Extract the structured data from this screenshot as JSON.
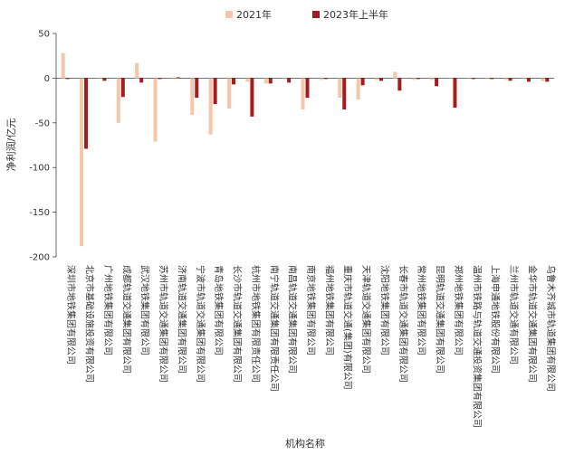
{
  "chart_data": {
    "type": "bar",
    "title": "",
    "xlabel": "机构名称",
    "ylabel": "净利润/亿元",
    "ylim": [
      -200,
      50
    ],
    "yticks": [
      50,
      0,
      -50,
      -100,
      -150,
      -200
    ],
    "grid": false,
    "legend_position": "top",
    "categories": [
      "深圳市地铁集团有限公司",
      "北京市基础设施投资有限公司",
      "广州地铁集团有限公司",
      "成都轨道交通集团有限公司",
      "武汉地铁集团有限公司",
      "苏州市轨道交通集团有限公司",
      "济南轨道交通集团有限公司",
      "宁波市轨道交通集团有限公司",
      "青岛地铁集团有限公司",
      "长沙市轨道交通集团有限公司",
      "杭州市地铁集团有限责任公司",
      "南宁轨道交通集团有限责任公司",
      "南昌轨道交通集团有限公司",
      "南京地铁集团有限公司",
      "福州地铁集团有限公司",
      "重庆市轨道交通(集团)有限公司",
      "天津轨道交通集团有限公司",
      "沈阳地铁集团有限公司",
      "长春市轨道交通集团有限公司",
      "常州地铁集团有限公司",
      "昆明轨道交通集团有限公司",
      "郑州地铁集团有限公司",
      "温州市铁路与轨道交通投资集团有限公司",
      "上海申通地铁股份有限公司",
      "兰州市轨道交通有限公司",
      "金华市轨道交通集团有限公司",
      "乌鲁木齐城市轨道集团有限公司"
    ],
    "series": [
      {
        "name": "2021年",
        "color": "#f5c6a8",
        "values": [
          28,
          -188,
          0,
          -50,
          17,
          -71,
          -1,
          -41,
          -63,
          -34,
          -4,
          -6,
          -1,
          -35,
          -2,
          -22,
          -24,
          -2,
          7,
          -2,
          -2,
          0,
          0,
          -1,
          -2,
          -1,
          -3
        ]
      },
      {
        "name": "2023年上半年",
        "color": "#a31c20",
        "values": [
          -1,
          -79,
          -3,
          -21,
          -5,
          -1,
          1,
          -22,
          -29,
          -7,
          -43,
          -6,
          -5,
          -22,
          -1,
          -35,
          -8,
          -3,
          -14,
          -1,
          -9,
          -33,
          -1,
          -1,
          -3,
          -4,
          -4
        ]
      }
    ]
  }
}
